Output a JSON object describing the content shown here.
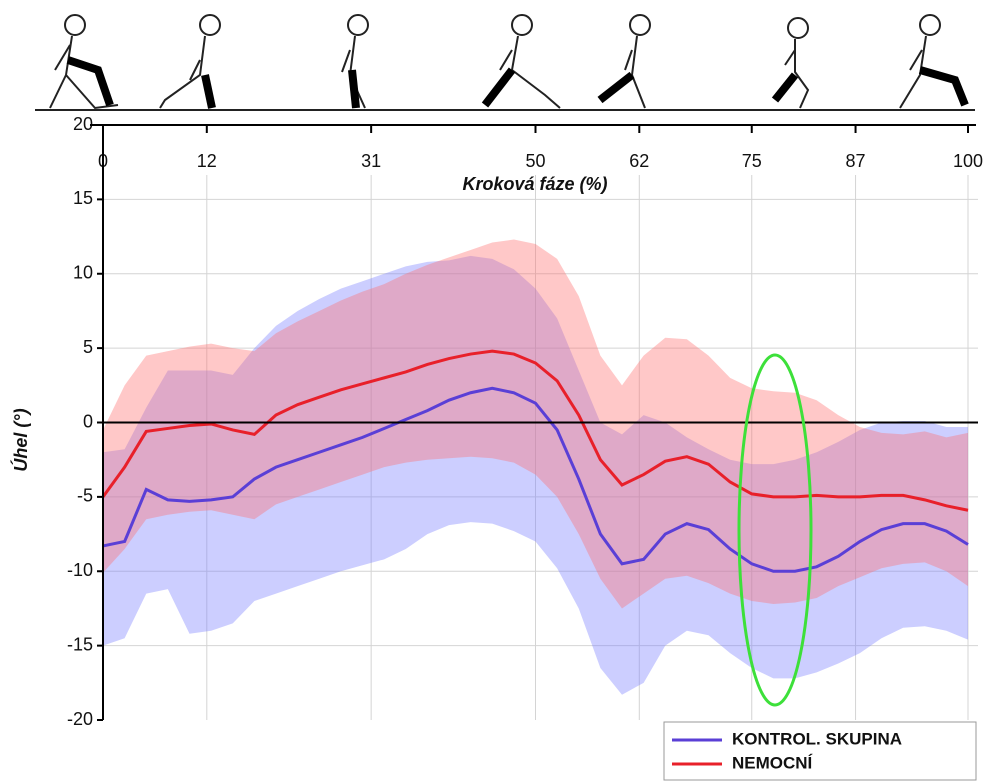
{
  "chart_data": {
    "type": "band-line",
    "x_label": "Kroková fáze (%)",
    "y_label": "Úhel (°)",
    "x": [
      0,
      2.5,
      5,
      7.5,
      10,
      12.5,
      15,
      17.5,
      20,
      22.5,
      25,
      27.5,
      30,
      32.5,
      35,
      37.5,
      40,
      42.5,
      45,
      47.5,
      50,
      52.5,
      55,
      57.5,
      60,
      62.5,
      65,
      67.5,
      70,
      72.5,
      75,
      77.5,
      80,
      82.5,
      85,
      87.5,
      90,
      92.5,
      95,
      97.5,
      100
    ],
    "series": [
      {
        "name": "KONTROL. SKUPINA",
        "color": "#5a3fd6",
        "band_color": "rgba(120,125,255,0.38)",
        "values": [
          -8.3,
          -8.0,
          -4.5,
          -5.2,
          -5.3,
          -5.2,
          -5.0,
          -3.8,
          -3.0,
          -2.5,
          -2.0,
          -1.5,
          -1.0,
          -0.4,
          0.2,
          0.8,
          1.5,
          2.0,
          2.3,
          2.0,
          1.3,
          -0.5,
          -3.8,
          -7.5,
          -9.5,
          -9.2,
          -7.5,
          -6.8,
          -7.2,
          -8.5,
          -9.5,
          -10.0,
          -10.0,
          -9.7,
          -9.0,
          -8.0,
          -7.2,
          -6.8,
          -6.8,
          -7.3,
          -8.2
        ],
        "upper": [
          -2.0,
          -1.8,
          1.0,
          3.5,
          3.5,
          3.5,
          3.2,
          5.0,
          6.5,
          7.5,
          8.3,
          9.0,
          9.5,
          10.0,
          10.5,
          10.8,
          10.9,
          11.2,
          11.0,
          10.3,
          9.0,
          7.0,
          3.5,
          0.0,
          -0.8,
          0.5,
          0.0,
          -1.0,
          -1.8,
          -2.5,
          -2.8,
          -2.8,
          -2.5,
          -2.0,
          -1.3,
          -0.5,
          0.0,
          0.1,
          0.1,
          -0.3,
          -0.3
        ],
        "lower": [
          -15.0,
          -14.5,
          -11.5,
          -11.2,
          -14.2,
          -14.0,
          -13.5,
          -12.0,
          -11.5,
          -11.0,
          -10.5,
          -10.0,
          -9.6,
          -9.2,
          -8.5,
          -7.5,
          -6.9,
          -6.7,
          -6.8,
          -7.3,
          -8.0,
          -9.8,
          -12.5,
          -16.5,
          -18.3,
          -17.5,
          -15.0,
          -14.0,
          -14.3,
          -15.5,
          -16.5,
          -17.2,
          -17.2,
          -16.8,
          -16.2,
          -15.5,
          -14.5,
          -13.8,
          -13.7,
          -14.0,
          -14.6
        ]
      },
      {
        "name": "NEMOCNÍ",
        "color": "#e8202a",
        "band_color": "rgba(255,110,110,0.38)",
        "values": [
          -5.0,
          -3.0,
          -0.6,
          -0.4,
          -0.2,
          -0.1,
          -0.5,
          -0.8,
          0.5,
          1.2,
          1.7,
          2.2,
          2.6,
          3.0,
          3.4,
          3.9,
          4.3,
          4.6,
          4.8,
          4.6,
          4.0,
          2.8,
          0.5,
          -2.5,
          -4.2,
          -3.5,
          -2.6,
          -2.3,
          -2.8,
          -4.0,
          -4.8,
          -5.0,
          -5.0,
          -4.9,
          -5.0,
          -5.0,
          -4.9,
          -4.9,
          -5.2,
          -5.6,
          -5.9
        ],
        "upper": [
          -0.5,
          2.5,
          4.5,
          4.8,
          5.1,
          5.3,
          5.0,
          4.8,
          6.0,
          6.8,
          7.5,
          8.2,
          8.8,
          9.3,
          10.0,
          10.6,
          11.1,
          11.6,
          12.1,
          12.3,
          12.0,
          11.0,
          8.5,
          4.5,
          2.5,
          4.5,
          5.7,
          5.6,
          4.5,
          3.0,
          2.3,
          2.1,
          2.0,
          1.5,
          0.5,
          -0.3,
          -0.7,
          -0.8,
          -0.6,
          -1.0,
          -0.7
        ],
        "lower": [
          -10.1,
          -8.5,
          -6.5,
          -6.2,
          -6.0,
          -5.9,
          -6.2,
          -6.5,
          -5.5,
          -5.0,
          -4.5,
          -4.0,
          -3.5,
          -3.0,
          -2.7,
          -2.5,
          -2.4,
          -2.3,
          -2.4,
          -2.7,
          -3.5,
          -5.0,
          -7.5,
          -10.5,
          -12.5,
          -11.5,
          -10.5,
          -10.3,
          -10.8,
          -11.5,
          -12.0,
          -12.2,
          -12.1,
          -11.8,
          -11.0,
          -10.4,
          -9.8,
          -9.5,
          -9.4,
          -10.0,
          -11.0
        ]
      }
    ],
    "xlim": [
      0,
      100
    ],
    "xticks": [
      0,
      12,
      31,
      50,
      62,
      75,
      87,
      100
    ],
    "ylim": [
      -20,
      20
    ],
    "yticks": [
      -20,
      -15,
      -10,
      -5,
      0,
      5,
      10,
      15,
      20
    ],
    "grid": true,
    "legend": "lower right"
  }
}
